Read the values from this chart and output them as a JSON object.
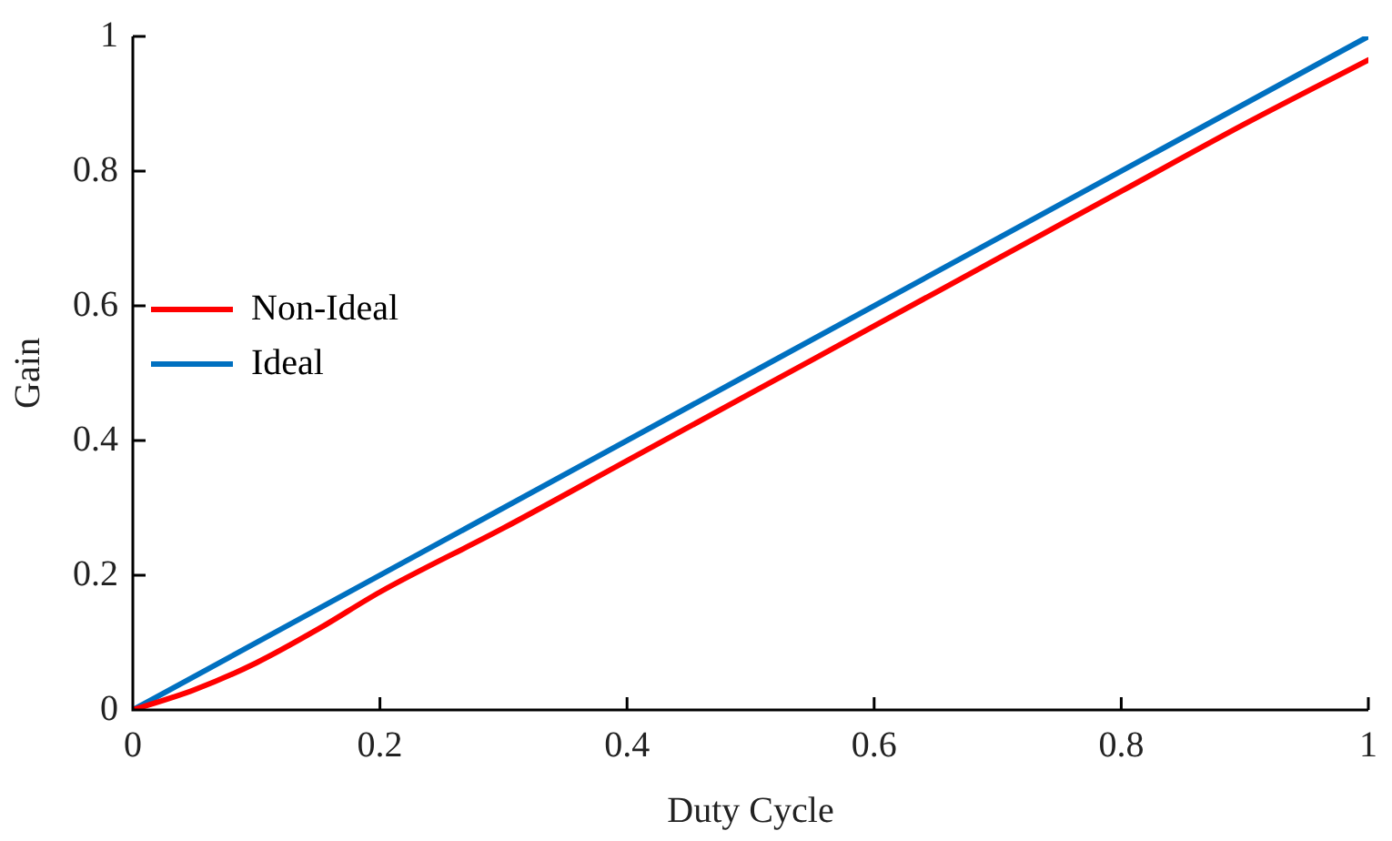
{
  "chart_data": {
    "type": "line",
    "xlabel": "Duty Cycle",
    "ylabel": "Gain",
    "xlim": [
      0,
      1
    ],
    "xticks": [
      0,
      0.2,
      0.4,
      0.6,
      0.8,
      1
    ],
    "ylim": [
      0,
      1
    ],
    "yticks": [
      0,
      0.2,
      0.4,
      0.6,
      0.8,
      1
    ],
    "grid": false,
    "legend": "top",
    "marker": "none",
    "line_style": "solid",
    "series": [
      {
        "name": "Non-Ideal",
        "color": "#ff0000",
        "x": [
          0,
          0.05,
          0.1,
          0.15,
          0.2,
          0.3,
          0.4,
          0.5,
          0.6,
          0.7,
          0.8,
          0.9,
          1
        ],
        "values": [
          0,
          0.03,
          0.07,
          0.12,
          0.175,
          0.27,
          0.37,
          0.47,
          0.57,
          0.67,
          0.77,
          0.87,
          0.965
        ]
      },
      {
        "name": "Ideal",
        "color": "#0070c0",
        "x": [
          0,
          1
        ],
        "values": [
          0,
          1
        ]
      }
    ]
  }
}
